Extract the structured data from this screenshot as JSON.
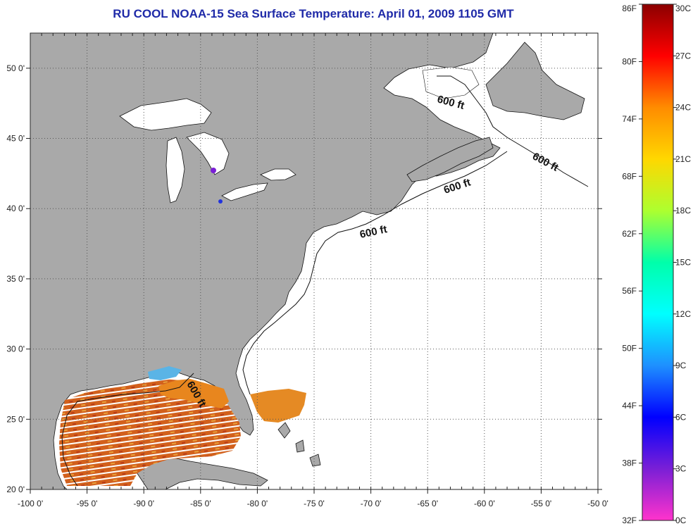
{
  "title": "RU COOL  NOAA-15  Sea Surface Temperature:  April 01, 2009 1105 GMT",
  "colors": {
    "land": "#a9a9a9",
    "water": "#ffffff",
    "grid": "#555555",
    "coast": "#111111",
    "sst_warm": "#e0761c",
    "sst_hot": "#c8401a",
    "sst_mid": "#f0a020",
    "sst_cool": "#5ab4e6",
    "title": "#1f2aa8"
  },
  "map": {
    "lon_range": [
      -100,
      -50
    ],
    "lat_range": [
      20,
      52.5
    ],
    "lon_ticks": [
      "-100 0'",
      "-95 0'",
      "-90 0'",
      "-85 0'",
      "-80 0'",
      "-75 0'",
      "-70 0'",
      "-65 0'",
      "-60 0'",
      "-55 0'",
      "-50 0'"
    ],
    "lat_ticks": [
      "20 0'",
      "25 0'",
      "30 0'",
      "35 0'",
      "40 0'",
      "45 0'",
      "50 0'"
    ],
    "contour_labels": [
      "600 ft",
      "600 ft",
      "600 ft",
      "600 ft",
      "600 ft"
    ]
  },
  "colorbar": {
    "fahrenheit_labels": [
      "86F",
      "80F",
      "74F",
      "68F",
      "62F",
      "56F",
      "50F",
      "44F",
      "38F",
      "32F"
    ],
    "celsius_labels": [
      "30C",
      "27C",
      "24C",
      "21C",
      "18C",
      "15C",
      "12C",
      "9C",
      "6C",
      "3C",
      "0C"
    ],
    "gradient_stops": [
      "#8b0000",
      "#ff0000",
      "#ff8c00",
      "#ffd700",
      "#adff2f",
      "#00ffaa",
      "#00ffff",
      "#1e90ff",
      "#0000ff",
      "#7a1fd6",
      "#ff33cc"
    ]
  }
}
